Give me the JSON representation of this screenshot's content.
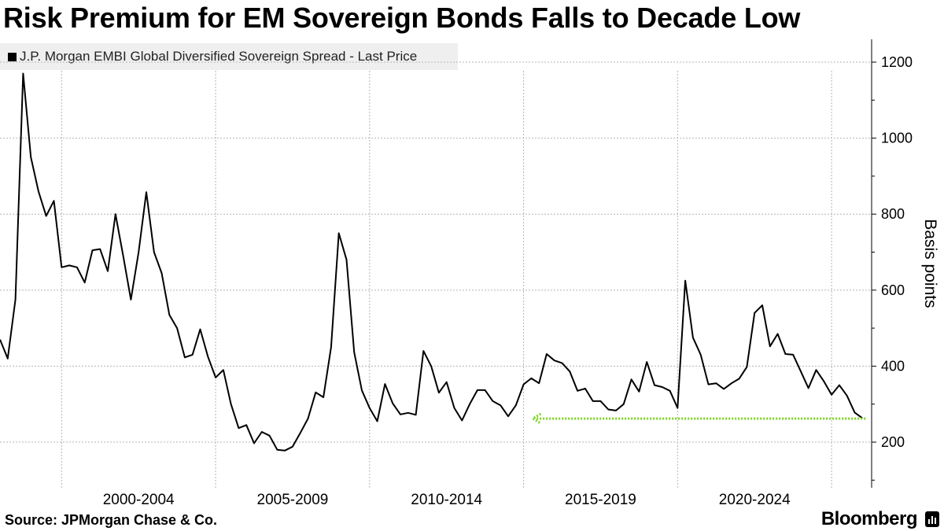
{
  "header": {
    "title": "Risk Premium for EM Sovereign Bonds Falls to Decade Low"
  },
  "footer": {
    "source": "Source: JPMorgan Chase & Co.",
    "brand": "Bloomberg"
  },
  "colors": {
    "line": "#000000",
    "arrow": "#7dd321",
    "grid": "#b4b4b4"
  },
  "chart_data": {
    "type": "line",
    "title": "Risk Premium for EM Sovereign Bonds Falls to Decade Low",
    "ylabel": "Basis points",
    "xlabel": "",
    "ylim": [
      80,
      1260
    ],
    "xlim": [
      1998.0,
      2026.3
    ],
    "y_ticks": [
      200,
      400,
      600,
      800,
      1000,
      1200
    ],
    "x_gridlines": [
      2000,
      2005,
      2010,
      2015,
      2020,
      2025
    ],
    "x_tick_labels": [
      {
        "label": "2000-2004",
        "center": 2002.5
      },
      {
        "label": "2005-2009",
        "center": 2007.5
      },
      {
        "label": "2010-2014",
        "center": 2012.5
      },
      {
        "label": "2015-2019",
        "center": 2017.5
      },
      {
        "label": "2020-2024",
        "center": 2022.5
      }
    ],
    "grid": true,
    "legend_position": "top-left",
    "series": [
      {
        "name": "J.P. Morgan EMBI Global Diversified Sovereign Spread - Last Price",
        "x": [
          1998.0,
          1998.25,
          1998.5,
          1998.75,
          1999.0,
          1999.25,
          1999.5,
          1999.75,
          2000.0,
          2000.25,
          2000.5,
          2000.75,
          2001.0,
          2001.25,
          2001.5,
          2001.75,
          2002.0,
          2002.25,
          2002.5,
          2002.75,
          2003.0,
          2003.25,
          2003.5,
          2003.75,
          2004.0,
          2004.25,
          2004.5,
          2004.75,
          2005.0,
          2005.25,
          2005.5,
          2005.75,
          2006.0,
          2006.25,
          2006.5,
          2006.75,
          2007.0,
          2007.25,
          2007.5,
          2007.75,
          2008.0,
          2008.25,
          2008.5,
          2008.75,
          2009.0,
          2009.25,
          2009.5,
          2009.75,
          2010.0,
          2010.25,
          2010.5,
          2010.75,
          2011.0,
          2011.25,
          2011.5,
          2011.75,
          2012.0,
          2012.25,
          2012.5,
          2012.75,
          2013.0,
          2013.25,
          2013.5,
          2013.75,
          2014.0,
          2014.25,
          2014.5,
          2014.75,
          2015.0,
          2015.25,
          2015.5,
          2015.75,
          2016.0,
          2016.25,
          2016.5,
          2016.75,
          2017.0,
          2017.25,
          2017.5,
          2017.75,
          2018.0,
          2018.25,
          2018.5,
          2018.75,
          2019.0,
          2019.25,
          2019.5,
          2019.75,
          2020.0,
          2020.25,
          2020.5,
          2020.75,
          2021.0,
          2021.25,
          2021.5,
          2021.75,
          2022.0,
          2022.25,
          2022.5,
          2022.75,
          2023.0,
          2023.25,
          2023.5,
          2023.75,
          2024.0,
          2024.25,
          2024.5,
          2024.75,
          2025.0,
          2025.25,
          2025.5,
          2025.75,
          2026.0
        ],
        "values": [
          470,
          420,
          575,
          1170,
          950,
          860,
          795,
          835,
          660,
          665,
          660,
          620,
          705,
          708,
          650,
          800,
          690,
          575,
          700,
          858,
          700,
          645,
          535,
          500,
          423,
          430,
          497,
          425,
          370,
          390,
          300,
          237,
          245,
          197,
          227,
          217,
          180,
          178,
          188,
          224,
          262,
          331,
          318,
          450,
          750,
          680,
          437,
          336,
          290,
          255,
          353,
          302,
          273,
          277,
          272,
          440,
          400,
          330,
          358,
          290,
          257,
          300,
          337,
          337,
          308,
          297,
          268,
          297,
          352,
          368,
          355,
          432,
          415,
          408,
          386,
          335,
          341,
          308,
          308,
          286,
          283,
          300,
          365,
          333,
          411,
          350,
          345,
          335,
          290,
          625,
          475,
          430,
          352,
          355,
          340,
          355,
          367,
          398,
          540,
          560,
          452,
          485,
          432,
          430,
          386,
          342,
          390,
          360,
          325,
          350,
          322,
          278,
          263
        ]
      }
    ],
    "annotation": {
      "type": "arrow",
      "direction": "left",
      "y": 262,
      "x_start": 2026.1,
      "x_end": 2015.3
    }
  }
}
